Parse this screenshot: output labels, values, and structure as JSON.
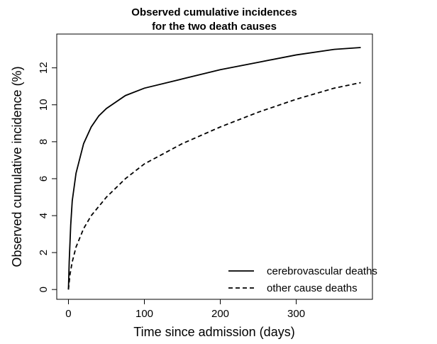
{
  "chart_data": {
    "type": "line",
    "title": [
      "Observed cumulative incidences",
      "for the two death causes"
    ],
    "x_label": "Time since admission (days)",
    "y_label": "Observed cumulative incidence (%)",
    "xlim": [
      -15.4,
      400.4
    ],
    "xticks": [
      0,
      100,
      200,
      300
    ],
    "ylim": [
      -0.53,
      13.83
    ],
    "yticks": [
      0,
      2,
      4,
      6,
      8,
      10,
      12
    ],
    "legend": "bottom-right",
    "series": [
      {
        "name": "cerebrovascular deaths",
        "color": "#000000",
        "dash": "solid",
        "x": [
          0,
          1,
          3,
          5,
          10,
          20,
          30,
          40,
          50,
          75,
          100,
          150,
          200,
          250,
          300,
          350,
          385
        ],
        "values": [
          0,
          1.5,
          3.5,
          4.8,
          6.3,
          7.9,
          8.8,
          9.4,
          9.8,
          10.5,
          10.9,
          11.4,
          11.9,
          12.3,
          12.7,
          13.0,
          13.1
        ]
      },
      {
        "name": "other cause deaths",
        "color": "#000000",
        "dash": "dashed",
        "x": [
          0,
          2,
          5,
          10,
          20,
          30,
          50,
          75,
          100,
          150,
          200,
          250,
          300,
          350,
          385
        ],
        "values": [
          0,
          0.8,
          1.5,
          2.3,
          3.3,
          4.0,
          5.0,
          6.0,
          6.8,
          7.9,
          8.8,
          9.6,
          10.3,
          10.9,
          11.2
        ]
      }
    ]
  }
}
